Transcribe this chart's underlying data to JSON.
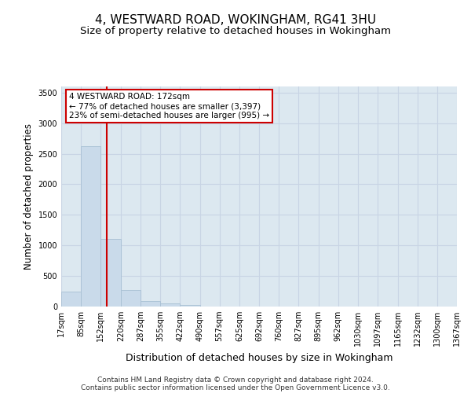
{
  "title": "4, WESTWARD ROAD, WOKINGHAM, RG41 3HU",
  "subtitle": "Size of property relative to detached houses in Wokingham",
  "xlabel": "Distribution of detached houses by size in Wokingham",
  "ylabel": "Number of detached properties",
  "footer_line1": "Contains HM Land Registry data © Crown copyright and database right 2024.",
  "footer_line2": "Contains public sector information licensed under the Open Government Licence v3.0.",
  "bar_edges": [
    17,
    85,
    152,
    220,
    287,
    355,
    422,
    490,
    557,
    625,
    692,
    760,
    827,
    895,
    962,
    1030,
    1097,
    1165,
    1232,
    1300,
    1367
  ],
  "bar_heights": [
    250,
    2620,
    1100,
    265,
    90,
    55,
    32,
    4,
    1,
    1,
    0,
    0,
    0,
    0,
    0,
    0,
    0,
    0,
    0,
    0
  ],
  "bar_color": "#c9daea",
  "bar_edge_color": "#a8c0d4",
  "property_line_x": 172,
  "property_line_color": "#cc0000",
  "ylim": [
    0,
    3600
  ],
  "yticks": [
    0,
    500,
    1000,
    1500,
    2000,
    2500,
    3000,
    3500
  ],
  "annotation_text": "4 WESTWARD ROAD: 172sqm\n← 77% of detached houses are smaller (3,397)\n23% of semi-detached houses are larger (995) →",
  "annotation_box_color": "#ffffff",
  "annotation_box_edge": "#cc0000",
  "grid_color": "#c8d4e4",
  "background_color": "#dce8f0",
  "title_fontsize": 11,
  "subtitle_fontsize": 9.5,
  "tick_label_fontsize": 7,
  "ylabel_fontsize": 8.5,
  "xlabel_fontsize": 9,
  "annotation_fontsize": 7.5,
  "footer_fontsize": 6.5
}
